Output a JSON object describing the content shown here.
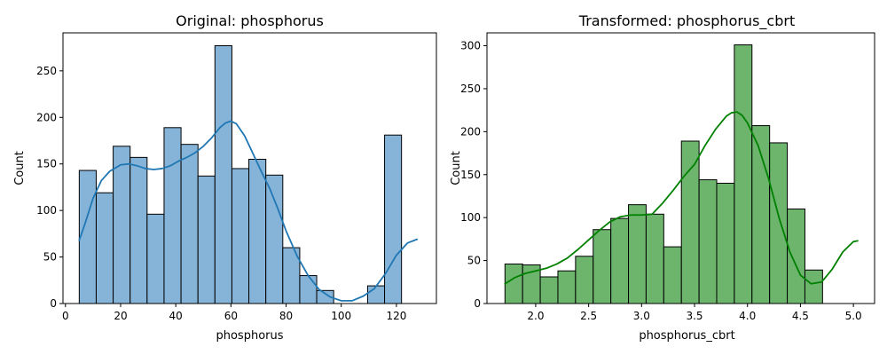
{
  "chart_data": [
    {
      "type": "bar",
      "title": "Original: phosphorus",
      "xlabel": "phosphorus",
      "ylabel": "Count",
      "xlim": [
        -0.9,
        134.5
      ],
      "ylim": [
        0,
        290.85
      ],
      "xticks": [
        0,
        20,
        40,
        60,
        80,
        100,
        120
      ],
      "yticks": [
        0,
        50,
        100,
        150,
        200,
        250
      ],
      "bar_color": "#86b4d8",
      "kde_color": "#1f77b4",
      "bins": {
        "x_start": 5,
        "width": 6.15,
        "values": [
          143,
          119,
          169,
          157,
          96,
          189,
          171,
          137,
          277,
          145,
          155,
          138,
          60,
          30,
          14,
          0,
          0,
          19,
          181,
          0
        ]
      },
      "kde": {
        "x": [
          5,
          7,
          10,
          13,
          16,
          20,
          23,
          26,
          29,
          32,
          35,
          38,
          41,
          44,
          47,
          50,
          53,
          56,
          58,
          60,
          62,
          65,
          68,
          71,
          74,
          77,
          80,
          84,
          88,
          92,
          96,
          100,
          104,
          108,
          112,
          116,
          120,
          124,
          127.5
        ],
        "y": [
          68,
          85,
          113,
          132,
          142,
          149,
          150,
          148,
          145,
          144,
          145,
          148,
          153,
          157,
          162,
          169,
          178,
          189,
          194,
          196,
          193,
          180,
          161,
          142,
          124,
          102,
          78,
          51,
          30,
          15,
          7,
          3,
          3,
          8,
          16,
          32,
          52,
          65,
          69
        ]
      }
    },
    {
      "type": "bar",
      "title": "Transformed: phosphorus_cbrt",
      "xlabel": "phosphorus_cbrt",
      "ylabel": "Count",
      "xlim": [
        1.54,
        5.2
      ],
      "ylim": [
        0,
        315.0
      ],
      "xticks": [
        2.0,
        2.5,
        3.0,
        3.5,
        4.0,
        4.5,
        5.0
      ],
      "yticks": [
        0,
        50,
        100,
        150,
        200,
        250,
        300
      ],
      "bar_color": "#6db46d",
      "kde_color": "#008000",
      "bins": {
        "x_start": 1.71,
        "width": 0.1666,
        "values": [
          46,
          45,
          31,
          38,
          55,
          86,
          99,
          115,
          104,
          66,
          189,
          144,
          140,
          301,
          207,
          187,
          110,
          39,
          0,
          0
        ]
      },
      "kde": {
        "x": [
          1.71,
          1.8,
          1.9,
          2.0,
          2.1,
          2.2,
          2.3,
          2.4,
          2.5,
          2.6,
          2.7,
          2.8,
          2.9,
          3.0,
          3.1,
          3.2,
          3.3,
          3.4,
          3.5,
          3.6,
          3.7,
          3.8,
          3.85,
          3.9,
          3.95,
          4.0,
          4.1,
          4.2,
          4.3,
          4.4,
          4.5,
          4.6,
          4.7,
          4.8,
          4.9,
          5.0,
          5.04
        ],
        "y": [
          23,
          30,
          35,
          38,
          41,
          46,
          53,
          63,
          74,
          85,
          95,
          101,
          103,
          103,
          104,
          117,
          132,
          148,
          162,
          184,
          203,
          218,
          222,
          223,
          219,
          210,
          184,
          145,
          99,
          60,
          33,
          23,
          25,
          40,
          60,
          72,
          73
        ]
      }
    }
  ]
}
